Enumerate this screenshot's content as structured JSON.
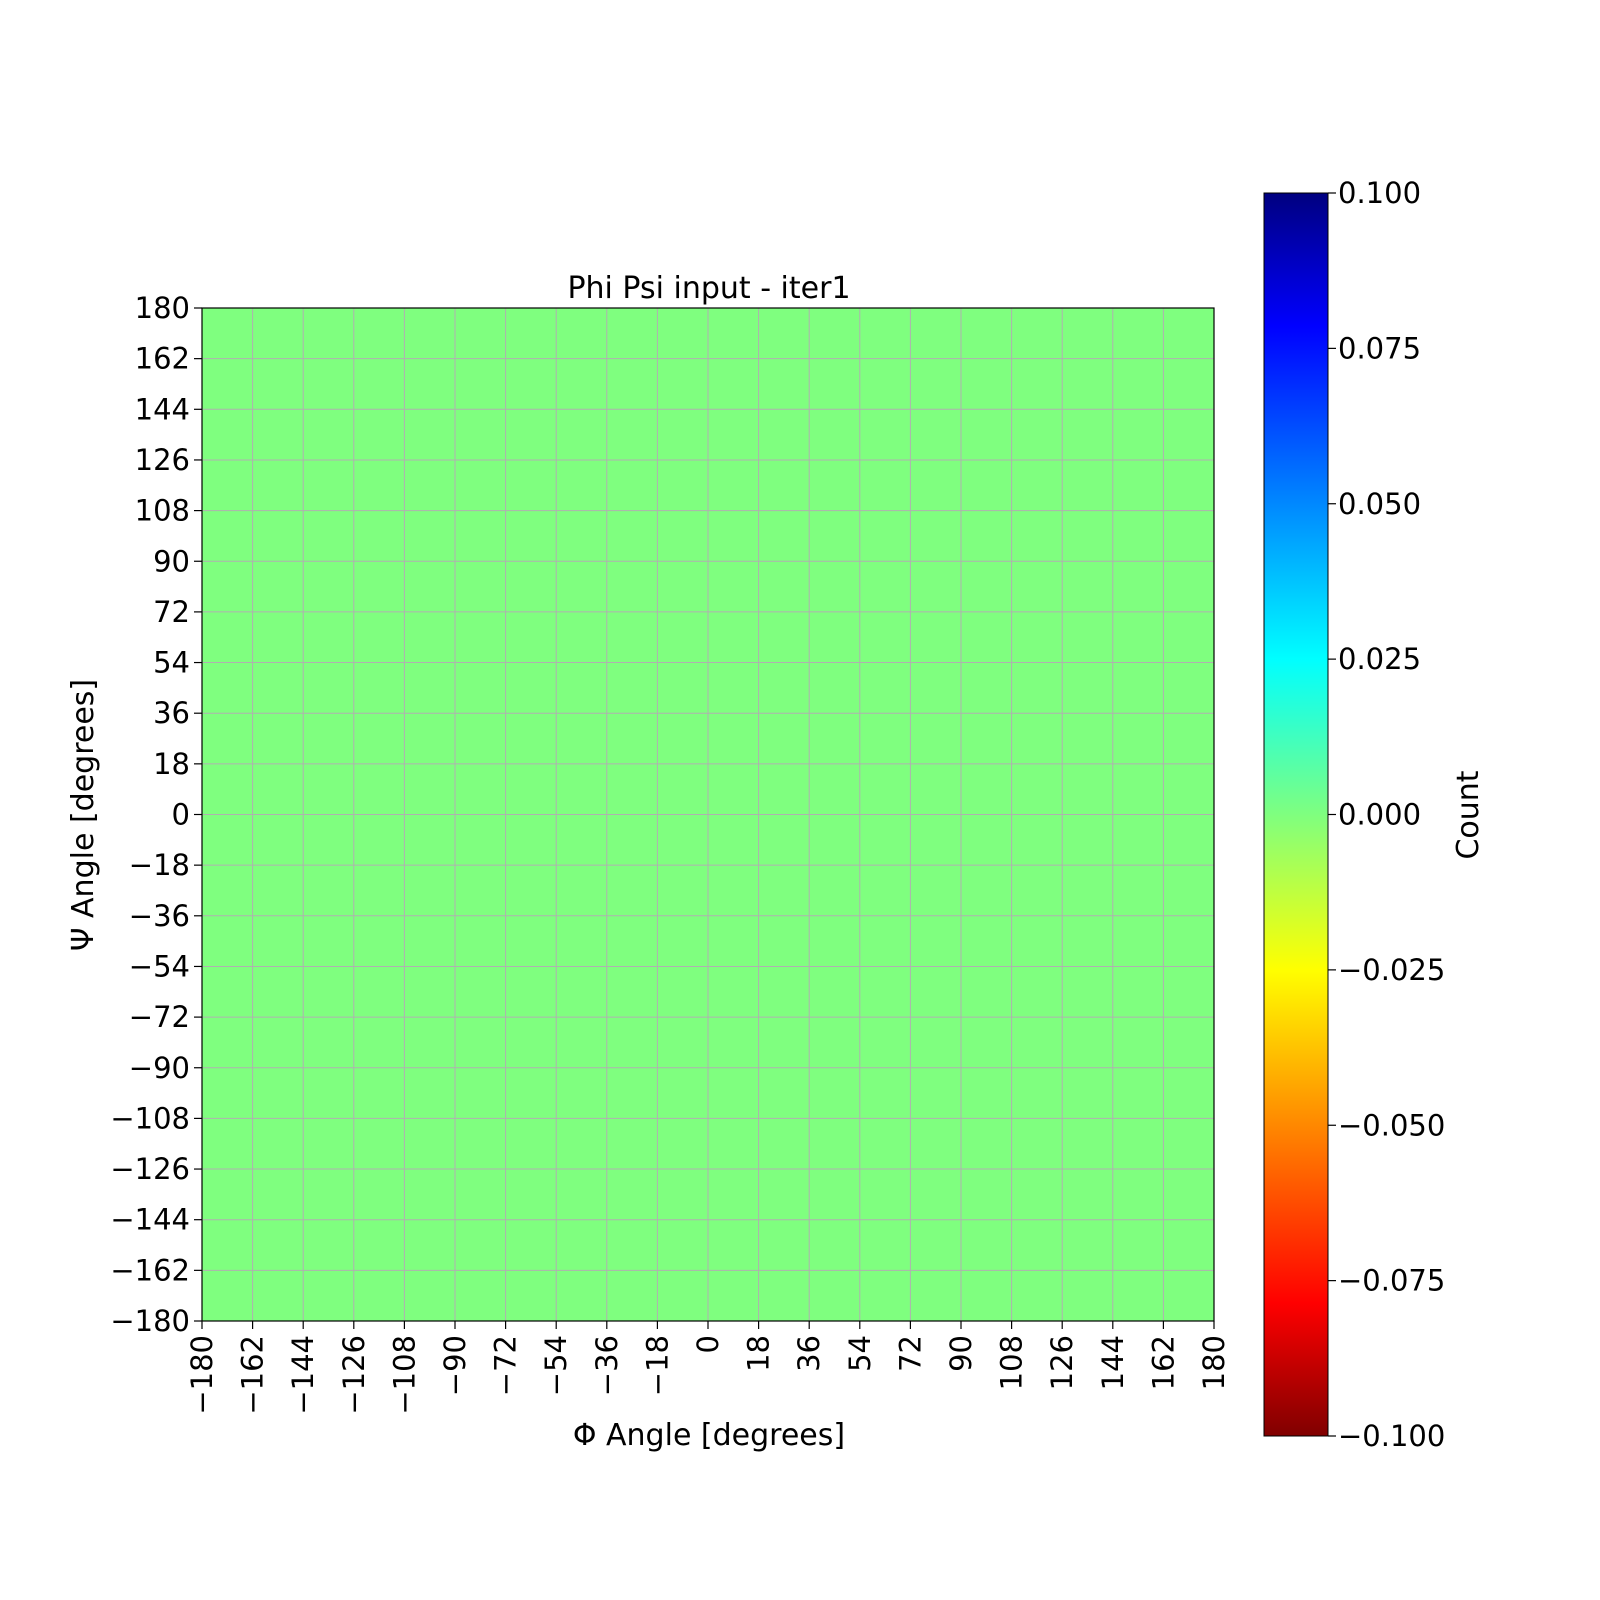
{
  "chart_data": {
    "type": "heatmap",
    "title": "Phi Psi input - iter1",
    "xlabel": "Φ Angle [degrees]",
    "ylabel": "Ψ Angle [degrees]",
    "xlim": [
      -180,
      180
    ],
    "ylim": [
      -180,
      180
    ],
    "x_ticks": [
      -180,
      -162,
      -144,
      -126,
      -108,
      -90,
      -72,
      -54,
      -36,
      -18,
      0,
      18,
      36,
      54,
      72,
      90,
      108,
      126,
      144,
      162,
      180
    ],
    "y_ticks": [
      -180,
      -162,
      -144,
      -126,
      -108,
      -90,
      -72,
      -54,
      -36,
      -18,
      0,
      18,
      36,
      54,
      72,
      90,
      108,
      126,
      144,
      162,
      180
    ],
    "x_tick_labels": [
      "−180",
      "−162",
      "−144",
      "−126",
      "−108",
      "−90",
      "−72",
      "−54",
      "−36",
      "−18",
      "0",
      "18",
      "36",
      "54",
      "72",
      "90",
      "108",
      "126",
      "144",
      "162",
      "180"
    ],
    "y_tick_labels": [
      "−180",
      "−162",
      "−144",
      "−126",
      "−108",
      "−90",
      "−72",
      "−54",
      "−36",
      "−18",
      "0",
      "18",
      "36",
      "54",
      "72",
      "90",
      "108",
      "126",
      "144",
      "162",
      "180"
    ],
    "grid": true,
    "grid_color": "#b0b0b0",
    "cell_value": 0.0,
    "cell_color": "#7fff7f",
    "colormap": "jet",
    "colorbar": {
      "label": "Count",
      "vmin": -0.1,
      "vmax": 0.1,
      "ticks": [
        0.1,
        0.075,
        0.05,
        0.025,
        0.0,
        -0.025,
        -0.05,
        -0.075,
        -0.1
      ],
      "tick_labels": [
        "0.100",
        "0.075",
        "0.050",
        "0.025",
        "0.000",
        "−0.025",
        "−0.050",
        "−0.075",
        "−0.100"
      ],
      "stops": [
        {
          "value": -0.1,
          "color": "#800000"
        },
        {
          "value": -0.0786,
          "color": "#ff0000"
        },
        {
          "value": -0.025,
          "color": "#ffff00"
        },
        {
          "value": 0.0,
          "color": "#7fff7f"
        },
        {
          "value": 0.025,
          "color": "#00ffff"
        },
        {
          "value": 0.0786,
          "color": "#0000ff"
        },
        {
          "value": 0.1,
          "color": "#000080"
        }
      ]
    }
  }
}
